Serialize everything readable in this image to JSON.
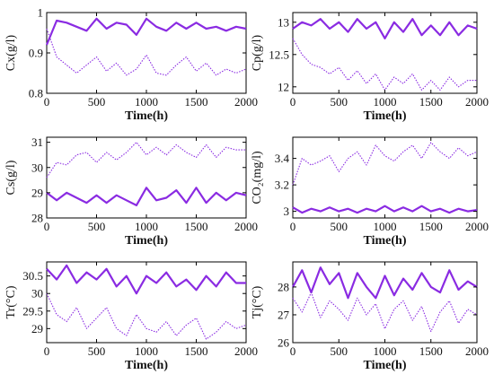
{
  "figure": {
    "line_color": "#8a2be2",
    "axis_color": "#000000"
  },
  "chart_data": [
    {
      "type": "line",
      "title": "",
      "ylabel": "Cx(g/l)",
      "xlabel": "Time(h)",
      "xlim": [
        0,
        2000
      ],
      "ylim": [
        0.8,
        1.0
      ],
      "xticks": [
        "0",
        "500",
        "1000",
        "1500",
        "2000"
      ],
      "yticks": [
        "0.8",
        "0.9",
        "1"
      ],
      "x": [
        0,
        100,
        200,
        300,
        400,
        500,
        600,
        700,
        800,
        900,
        1000,
        1100,
        1200,
        1300,
        1400,
        1500,
        1600,
        1700,
        1800,
        1900,
        2000
      ],
      "series": [
        {
          "style": "solid",
          "values": [
            0.92,
            0.98,
            0.975,
            0.965,
            0.955,
            0.985,
            0.96,
            0.975,
            0.97,
            0.945,
            0.985,
            0.965,
            0.955,
            0.975,
            0.96,
            0.975,
            0.96,
            0.965,
            0.955,
            0.965,
            0.96
          ]
        },
        {
          "style": "dotted",
          "values": [
            0.96,
            0.89,
            0.87,
            0.85,
            0.87,
            0.89,
            0.855,
            0.875,
            0.845,
            0.86,
            0.895,
            0.85,
            0.845,
            0.87,
            0.89,
            0.855,
            0.875,
            0.845,
            0.86,
            0.85,
            0.86
          ]
        }
      ]
    },
    {
      "type": "line",
      "title": "",
      "ylabel": "Cp(g/l)",
      "xlabel": "Time(h)",
      "xlim": [
        0,
        2000
      ],
      "ylim": [
        11.9,
        13.15
      ],
      "xticks": [
        "0",
        "500",
        "1000",
        "1500",
        "2000"
      ],
      "yticks": [
        "12",
        "12.5",
        "13"
      ],
      "x": [
        0,
        100,
        200,
        300,
        400,
        500,
        600,
        700,
        800,
        900,
        1000,
        1100,
        1200,
        1300,
        1400,
        1500,
        1600,
        1700,
        1800,
        1900,
        2000
      ],
      "series": [
        {
          "style": "solid",
          "values": [
            12.9,
            13.0,
            12.95,
            13.05,
            12.9,
            13.0,
            12.85,
            13.05,
            12.9,
            13.0,
            12.75,
            13.0,
            12.85,
            13.05,
            12.8,
            12.95,
            12.8,
            13.0,
            12.8,
            12.95,
            12.9
          ]
        },
        {
          "style": "dotted",
          "values": [
            12.75,
            12.5,
            12.35,
            12.3,
            12.2,
            12.3,
            12.1,
            12.25,
            12.05,
            12.2,
            11.95,
            12.15,
            12.05,
            12.2,
            11.95,
            12.1,
            11.95,
            12.15,
            12.0,
            12.1,
            12.1
          ]
        }
      ]
    },
    {
      "type": "line",
      "title": "",
      "ylabel": "Cs(g/l)",
      "xlabel": "Time(h)",
      "xlim": [
        0,
        2000
      ],
      "ylim": [
        28,
        31.2
      ],
      "xticks": [
        "0",
        "500",
        "1000",
        "1500",
        "2000"
      ],
      "yticks": [
        "28",
        "29",
        "30",
        "31"
      ],
      "x": [
        0,
        100,
        200,
        300,
        400,
        500,
        600,
        700,
        800,
        900,
        1000,
        1100,
        1200,
        1300,
        1400,
        1500,
        1600,
        1700,
        1800,
        1900,
        2000
      ],
      "series": [
        {
          "style": "solid",
          "values": [
            29.0,
            28.7,
            29.0,
            28.8,
            28.6,
            28.9,
            28.6,
            28.9,
            28.7,
            28.5,
            29.2,
            28.7,
            28.8,
            29.1,
            28.6,
            29.2,
            28.6,
            29.0,
            28.7,
            29.0,
            28.9
          ]
        },
        {
          "style": "dotted",
          "values": [
            29.6,
            30.2,
            30.1,
            30.5,
            30.6,
            30.2,
            30.6,
            30.3,
            30.6,
            31.0,
            30.5,
            30.8,
            30.5,
            30.9,
            30.6,
            30.4,
            30.9,
            30.4,
            30.8,
            30.7,
            30.7
          ]
        }
      ]
    },
    {
      "type": "line",
      "title": "",
      "ylabel": "CO₂(mg/l)",
      "xlabel": "Time(h)",
      "xlim": [
        0,
        2000
      ],
      "ylim": [
        2.95,
        3.56
      ],
      "xticks": [
        "0",
        "500",
        "1000",
        "1500",
        "2000"
      ],
      "yticks": [
        "3",
        "3.2",
        "3.4"
      ],
      "x": [
        0,
        100,
        200,
        300,
        400,
        500,
        600,
        700,
        800,
        900,
        1000,
        1100,
        1200,
        1300,
        1400,
        1500,
        1600,
        1700,
        1800,
        1900,
        2000
      ],
      "series": [
        {
          "style": "solid",
          "values": [
            3.03,
            2.99,
            3.02,
            3.0,
            3.03,
            3.0,
            3.02,
            2.99,
            3.02,
            3.0,
            3.04,
            3.0,
            3.03,
            3.0,
            3.04,
            3.0,
            3.02,
            2.99,
            3.02,
            3.0,
            3.01
          ]
        },
        {
          "style": "dotted",
          "values": [
            3.2,
            3.4,
            3.35,
            3.38,
            3.42,
            3.3,
            3.4,
            3.45,
            3.35,
            3.5,
            3.42,
            3.38,
            3.45,
            3.5,
            3.4,
            3.52,
            3.45,
            3.4,
            3.48,
            3.42,
            3.45
          ]
        }
      ]
    },
    {
      "type": "line",
      "title": "",
      "ylabel": "Tr(°C)",
      "xlabel": "Time(h)",
      "xlim": [
        0,
        2000
      ],
      "ylim": [
        28.6,
        30.9
      ],
      "xticks": [
        "0",
        "500",
        "1000",
        "1500",
        "2000"
      ],
      "yticks": [
        "29",
        "29.5",
        "30",
        "30.5"
      ],
      "x": [
        0,
        100,
        200,
        300,
        400,
        500,
        600,
        700,
        800,
        900,
        1000,
        1100,
        1200,
        1300,
        1400,
        1500,
        1600,
        1700,
        1800,
        1900,
        2000
      ],
      "series": [
        {
          "style": "solid",
          "values": [
            30.7,
            30.4,
            30.8,
            30.3,
            30.6,
            30.4,
            30.7,
            30.2,
            30.5,
            30.0,
            30.5,
            30.3,
            30.6,
            30.2,
            30.4,
            30.1,
            30.5,
            30.2,
            30.6,
            30.3,
            30.3
          ]
        },
        {
          "style": "dotted",
          "values": [
            30.0,
            29.4,
            29.2,
            29.6,
            29.0,
            29.3,
            29.6,
            29.0,
            28.8,
            29.4,
            29.0,
            28.9,
            29.2,
            28.8,
            29.1,
            29.3,
            28.7,
            28.9,
            29.2,
            29.0,
            29.1
          ]
        }
      ]
    },
    {
      "type": "line",
      "title": "",
      "ylabel": "Tj(°C)",
      "xlabel": "Time(h)",
      "xlim": [
        0,
        2000
      ],
      "ylim": [
        26,
        28.9
      ],
      "xticks": [
        "0",
        "500",
        "1000",
        "1500",
        "2000"
      ],
      "yticks": [
        "26",
        "27",
        "28"
      ],
      "x": [
        0,
        100,
        200,
        300,
        400,
        500,
        600,
        700,
        800,
        900,
        1000,
        1100,
        1200,
        1300,
        1400,
        1500,
        1600,
        1700,
        1800,
        1900,
        2000
      ],
      "series": [
        {
          "style": "solid",
          "values": [
            28.0,
            28.6,
            27.8,
            28.7,
            28.1,
            28.5,
            27.6,
            28.5,
            28.0,
            27.6,
            28.4,
            27.7,
            28.3,
            27.9,
            28.5,
            28.0,
            27.8,
            28.6,
            27.9,
            28.2,
            28.0
          ]
        },
        {
          "style": "dotted",
          "values": [
            27.6,
            27.1,
            27.8,
            26.9,
            27.5,
            27.2,
            26.8,
            27.6,
            27.0,
            27.4,
            26.5,
            27.2,
            27.5,
            26.8,
            27.3,
            26.4,
            27.1,
            27.5,
            26.7,
            27.2,
            27.0
          ]
        }
      ]
    }
  ]
}
